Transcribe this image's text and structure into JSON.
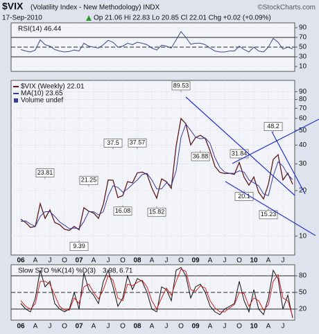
{
  "header": {
    "symbol": "$VIX",
    "description": "(Volatility Index - New Methodology) INDX",
    "source": "©StockCharts.com",
    "date": "17-Sep-2010",
    "quote": "Op 21.06 Hi 22.83 Lo 20.85 Cl 22.01 Chg +0.02 (+0.09%)"
  },
  "chart_data": [
    {
      "type": "line",
      "title": "RSI(14) 46.44",
      "series": [
        {
          "name": null,
          "color": "#3b4b8c",
          "values": [
            45,
            42,
            40,
            44,
            65,
            55,
            52,
            45,
            42,
            40,
            41,
            44,
            42,
            58,
            52,
            50,
            48,
            55,
            64,
            60,
            50,
            52,
            58,
            55,
            60,
            58,
            55,
            48,
            44,
            54,
            52,
            48,
            65,
            82,
            70,
            56,
            58,
            58,
            55,
            48,
            42,
            40,
            40,
            42,
            42,
            52,
            45,
            40,
            50,
            42,
            40,
            50,
            68,
            60,
            46,
            50,
            46.44
          ]
        }
      ],
      "ylim": [
        0,
        100
      ],
      "yticks": [
        90,
        70,
        50,
        30,
        10
      ],
      "hlines": [
        70,
        50,
        30
      ],
      "hline_styles": [
        "solid",
        "dashed",
        "solid"
      ]
    },
    {
      "type": "line",
      "log": true,
      "categories": [
        "06",
        null,
        null,
        "A",
        null,
        null,
        "J",
        null,
        null,
        "O",
        null,
        null,
        "07",
        null,
        null,
        "A",
        null,
        null,
        "J",
        null,
        null,
        "O",
        null,
        null,
        "08",
        null,
        null,
        "A",
        null,
        null,
        "J",
        null,
        null,
        "O",
        null,
        null,
        "09",
        null,
        null,
        "A",
        null,
        null,
        "J",
        null,
        null,
        "O",
        null,
        null,
        "10",
        null,
        null,
        "A",
        null,
        null,
        "J",
        null,
        null
      ],
      "series": [
        {
          "name": "$VIX (Weekly) 22.01",
          "color": "#5a1a1a",
          "values": [
            12.9,
            12.3,
            11.4,
            11.6,
            16.4,
            13.1,
            14.9,
            12.3,
            11.9,
            11.1,
            10.9,
            11.6,
            11.0,
            15.4,
            14.6,
            14.2,
            13.1,
            16.2,
            23.5,
            23.4,
            18.0,
            18.5,
            22.9,
            22.5,
            26.2,
            26.5,
            25.6,
            20.8,
            17.8,
            23.9,
            22.9,
            20.7,
            39.4,
            59.9,
            55.3,
            40.0,
            44.8,
            46.4,
            44.1,
            36.5,
            28.9,
            26.4,
            25.9,
            26.0,
            25.6,
            30.7,
            24.5,
            21.7,
            24.6,
            19.5,
            17.6,
            22.0,
            32.1,
            34.5,
            23.5,
            26.1,
            22.01
          ]
        },
        {
          "name": "MA(10) 23.65",
          "color": "#3a3aa0",
          "values": [
            12.5,
            12.6,
            12.0,
            11.6,
            13.5,
            14.5,
            14.5,
            13.5,
            12.4,
            11.8,
            11.2,
            11.3,
            11.2,
            12.5,
            14.5,
            14.5,
            13.8,
            14.5,
            18.5,
            21.5,
            21.0,
            19.5,
            20.5,
            22.0,
            23.5,
            25.5,
            26.0,
            23.5,
            20.5,
            20.5,
            22.5,
            21.5,
            27.0,
            45.0,
            55.0,
            50.0,
            45.0,
            44.0,
            44.5,
            41.0,
            33.0,
            28.5,
            26.5,
            26.0,
            26.0,
            27.0,
            26.5,
            23.5,
            22.5,
            21.5,
            19.0,
            18.5,
            25.0,
            31.0,
            29.0,
            25.5,
            23.65
          ]
        }
      ],
      "volume_label": "Volume undef",
      "annotations": [
        {
          "value": 23.81,
          "x": 5
        },
        {
          "value": 9.39,
          "x": 12
        },
        {
          "value": 21.25,
          "x": 14
        },
        {
          "value": 37.5,
          "x": 19
        },
        {
          "value": 16.08,
          "x": 21
        },
        {
          "value": 37.57,
          "x": 24
        },
        {
          "value": 15.82,
          "x": 28
        },
        {
          "value": 89.53,
          "x": 33
        },
        {
          "value": 36.88,
          "x": 37
        },
        {
          "value": 31.84,
          "x": 45
        },
        {
          "value": 20.1,
          "x": 46
        },
        {
          "value": 15.23,
          "x": 51
        },
        {
          "value": 48.2,
          "x": 52
        }
      ],
      "ylim": [
        7.5,
        107
      ],
      "yticks": [
        90,
        80,
        70,
        60,
        50,
        40,
        30,
        20,
        10
      ]
    },
    {
      "type": "line",
      "title": "Slow STO %K(14) %D(3)",
      "categories": [
        "06",
        null,
        null,
        "A",
        null,
        null,
        "J",
        null,
        null,
        "O",
        null,
        null,
        "07",
        null,
        null,
        "A",
        null,
        null,
        "J",
        null,
        null,
        "O",
        null,
        null,
        "08",
        null,
        null,
        "A",
        null,
        null,
        "J",
        null,
        null,
        "O",
        null,
        null,
        "09",
        null,
        null,
        "A",
        null,
        null,
        "J",
        null,
        null,
        "O",
        null,
        null,
        "10",
        null,
        null,
        "A",
        null,
        null,
        "J",
        null,
        null
      ],
      "series": [
        {
          "name": "3.98,",
          "color": "#111111",
          "values": [
            30,
            20,
            15,
            40,
            90,
            60,
            70,
            30,
            20,
            15,
            20,
            50,
            20,
            85,
            55,
            45,
            30,
            70,
            90,
            60,
            25,
            40,
            80,
            55,
            75,
            70,
            50,
            20,
            15,
            60,
            55,
            35,
            90,
            95,
            80,
            40,
            60,
            65,
            50,
            25,
            15,
            10,
            20,
            25,
            30,
            70,
            35,
            15,
            55,
            20,
            10,
            40,
            90,
            75,
            20,
            45,
            3.98
          ]
        },
        {
          "name": "6.71",
          "color": "#d02020",
          "values": [
            35,
            25,
            20,
            30,
            70,
            70,
            65,
            45,
            25,
            18,
            18,
            40,
            30,
            60,
            65,
            50,
            38,
            55,
            80,
            72,
            40,
            35,
            65,
            62,
            68,
            72,
            60,
            35,
            20,
            40,
            58,
            45,
            70,
            92,
            88,
            55,
            52,
            62,
            58,
            35,
            22,
            15,
            15,
            22,
            28,
            50,
            48,
            25,
            40,
            35,
            18,
            28,
            70,
            82,
            40,
            35,
            6.71
          ]
        }
      ],
      "ylim": [
        0,
        100
      ],
      "yticks": [
        80,
        50,
        20
      ],
      "hlines": [
        80,
        50,
        20
      ],
      "hline_styles": [
        "solid",
        "dashed",
        "solid"
      ]
    }
  ]
}
